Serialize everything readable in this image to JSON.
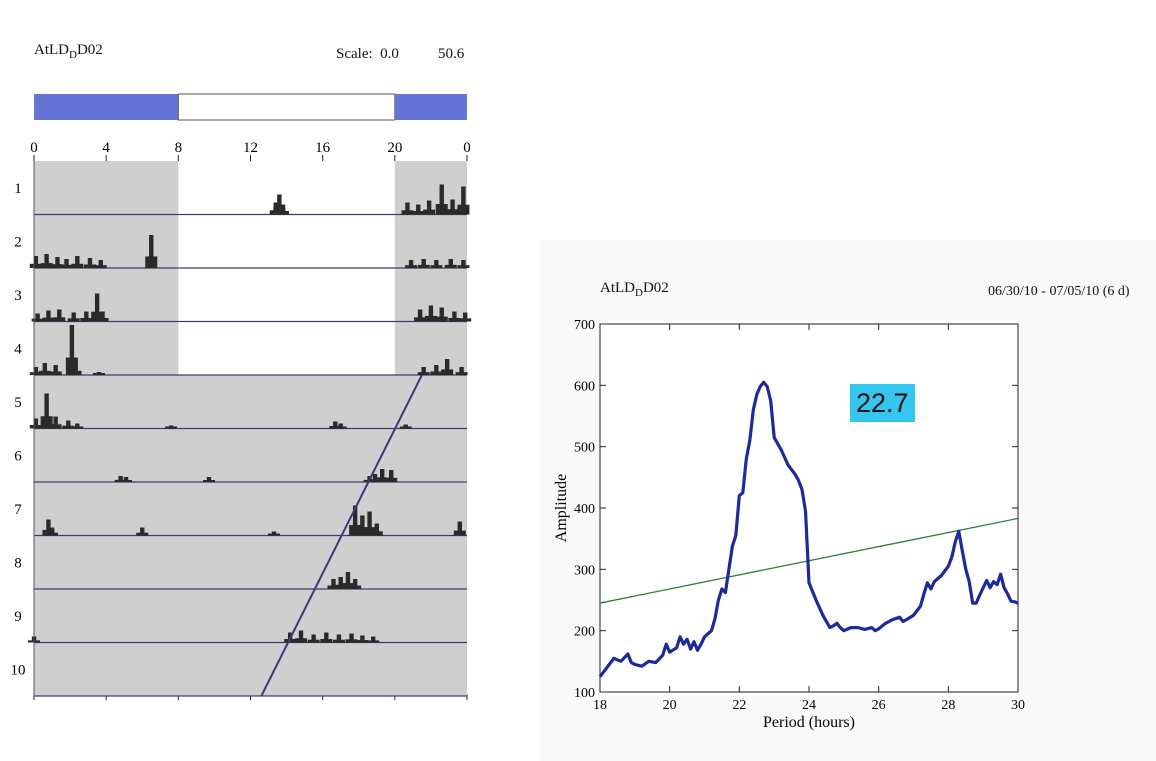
{
  "actogram": {
    "title_main": "AtLD",
    "title_sub": "D",
    "title_tail": "D02",
    "scale_label": "Scale:",
    "scale_min": "0.0",
    "scale_max": "50.6",
    "lights_off_until_hour": 8,
    "lights_on_until_hour": 20,
    "ld_cycle_days": 4,
    "x_ticks": [
      "0",
      "4",
      "8",
      "12",
      "16",
      "20",
      "0"
    ],
    "x_tick_hours": [
      0,
      4,
      8,
      12,
      16,
      20,
      24
    ],
    "day_labels": [
      "1",
      "2",
      "3",
      "4",
      "5",
      "6",
      "7",
      "8",
      "9",
      "10"
    ],
    "colors": {
      "dark_phase": "#cfcfcf",
      "light_phase": "#ffffff",
      "bar_blue": "#6674d6",
      "bars": "#2a2a2a",
      "fit_line": "#3a3a7e"
    },
    "activity": [
      [
        [
          13.4,
          12
        ],
        [
          13.6,
          20
        ],
        [
          13.8,
          10
        ],
        [
          20.7,
          12
        ],
        [
          21.3,
          10
        ],
        [
          21.9,
          14
        ],
        [
          22.6,
          30
        ],
        [
          23.2,
          15
        ],
        [
          23.8,
          28
        ]
      ],
      [
        [
          0.1,
          12
        ],
        [
          0.7,
          14
        ],
        [
          1.3,
          11
        ],
        [
          1.8,
          9
        ],
        [
          2.4,
          12
        ],
        [
          3.1,
          10
        ],
        [
          3.7,
          8
        ],
        [
          6.5,
          33
        ],
        [
          20.9,
          8
        ],
        [
          21.6,
          9
        ],
        [
          22.3,
          8
        ],
        [
          23.1,
          9
        ],
        [
          23.8,
          8
        ]
      ],
      [
        [
          0.2,
          8
        ],
        [
          0.8,
          11
        ],
        [
          1.4,
          12
        ],
        [
          2.2,
          9
        ],
        [
          2.9,
          10
        ],
        [
          3.5,
          28
        ],
        [
          3.8,
          10
        ],
        [
          21.4,
          12
        ],
        [
          22.0,
          16
        ],
        [
          22.6,
          14
        ],
        [
          23.3,
          10
        ],
        [
          23.9,
          9
        ]
      ],
      [
        [
          0.1,
          8
        ],
        [
          0.6,
          12
        ],
        [
          1.2,
          10
        ],
        [
          2.1,
          50
        ],
        [
          2.3,
          12
        ],
        [
          3.6,
          3
        ],
        [
          21.6,
          8
        ],
        [
          22.3,
          10
        ],
        [
          22.9,
          16
        ],
        [
          23.7,
          8
        ]
      ],
      [
        [
          0.1,
          10
        ],
        [
          0.7,
          35
        ],
        [
          1.2,
          12
        ],
        [
          1.9,
          8
        ],
        [
          2.4,
          5
        ],
        [
          7.6,
          3
        ],
        [
          16.7,
          7
        ],
        [
          17.0,
          5
        ],
        [
          20.6,
          4
        ]
      ],
      [
        [
          4.8,
          6
        ],
        [
          5.1,
          5
        ],
        [
          9.7,
          5
        ],
        [
          18.6,
          6
        ],
        [
          18.9,
          8
        ],
        [
          19.3,
          13
        ],
        [
          19.8,
          12
        ]
      ],
      [
        [
          0.8,
          16
        ],
        [
          1.0,
          8
        ],
        [
          6.0,
          8
        ],
        [
          13.3,
          4
        ],
        [
          17.8,
          30
        ],
        [
          18.2,
          20
        ],
        [
          18.6,
          24
        ],
        [
          19.0,
          12
        ],
        [
          23.6,
          14
        ]
      ],
      [
        [
          16.6,
          10
        ],
        [
          17.0,
          12
        ],
        [
          17.4,
          17
        ],
        [
          17.8,
          10
        ]
      ],
      [
        [
          0.0,
          6
        ],
        [
          14.2,
          10
        ],
        [
          14.8,
          12
        ],
        [
          15.5,
          8
        ],
        [
          16.2,
          10
        ],
        [
          16.9,
          8
        ],
        [
          17.6,
          9
        ],
        [
          18.2,
          7
        ],
        [
          18.8,
          6
        ]
      ],
      []
    ],
    "fit_line_hour_at_day5_top": 21.5,
    "fit_line_hour_at_day10_bottom": 12.6
  },
  "periodogram": {
    "title_main": "AtLD",
    "title_sub": "D",
    "title_tail": "D02",
    "date_range": "06/30/10 - 07/05/10  (6 d)",
    "period_value": "22.7"
  },
  "chart_data": {
    "type": "line",
    "xlabel": "Period (hours)",
    "ylabel": "Amplitude",
    "xlim": [
      18,
      30
    ],
    "ylim": [
      100,
      700
    ],
    "x_ticks": [
      18,
      20,
      22,
      24,
      26,
      28,
      30
    ],
    "y_ticks": [
      100,
      200,
      300,
      400,
      500,
      600,
      700
    ],
    "series": [
      {
        "color": "#1c2a9a",
        "x": [
          18.0,
          18.2,
          18.4,
          18.6,
          18.8,
          18.9,
          19.0,
          19.2,
          19.4,
          19.6,
          19.8,
          19.9,
          20.0,
          20.2,
          20.3,
          20.4,
          20.5,
          20.6,
          20.7,
          20.8,
          20.9,
          21.0,
          21.2,
          21.3,
          21.4,
          21.5,
          21.6,
          21.8,
          21.9,
          22.0,
          22.1,
          22.2,
          22.3,
          22.4,
          22.5,
          22.6,
          22.7,
          22.8,
          22.9,
          23.0,
          23.2,
          23.4,
          23.6,
          23.7,
          23.8,
          23.9,
          24.0,
          24.2,
          24.4,
          24.6,
          24.7,
          24.8,
          24.9,
          25.0,
          25.2,
          25.4,
          25.6,
          25.8,
          25.9,
          26.0,
          26.2,
          26.4,
          26.6,
          26.7,
          26.8,
          27.0,
          27.2,
          27.3,
          27.4,
          27.5,
          27.6,
          27.8,
          28.0,
          28.1,
          28.2,
          28.3,
          28.4,
          28.5,
          28.6,
          28.7,
          28.8,
          28.9,
          29.0,
          29.1,
          29.2,
          29.3,
          29.4,
          29.5,
          29.6,
          29.7,
          29.8,
          29.9,
          30.0
        ],
        "y": [
          125,
          140,
          155,
          150,
          162,
          148,
          145,
          142,
          150,
          148,
          160,
          178,
          165,
          172,
          190,
          178,
          186,
          170,
          182,
          168,
          178,
          190,
          200,
          220,
          250,
          268,
          262,
          338,
          355,
          420,
          425,
          480,
          510,
          560,
          585,
          598,
          605,
          598,
          575,
          515,
          495,
          470,
          455,
          445,
          430,
          395,
          278,
          250,
          225,
          205,
          208,
          212,
          205,
          200,
          205,
          205,
          202,
          205,
          200,
          203,
          212,
          218,
          222,
          215,
          218,
          225,
          240,
          260,
          278,
          268,
          280,
          290,
          305,
          320,
          345,
          362,
          330,
          300,
          280,
          245,
          245,
          258,
          270,
          282,
          270,
          280,
          275,
          292,
          270,
          260,
          248,
          247,
          245
        ]
      }
    ],
    "reference_line": {
      "color": "#2f7d3a",
      "x": [
        18,
        30
      ],
      "y": [
        245,
        383
      ]
    }
  }
}
